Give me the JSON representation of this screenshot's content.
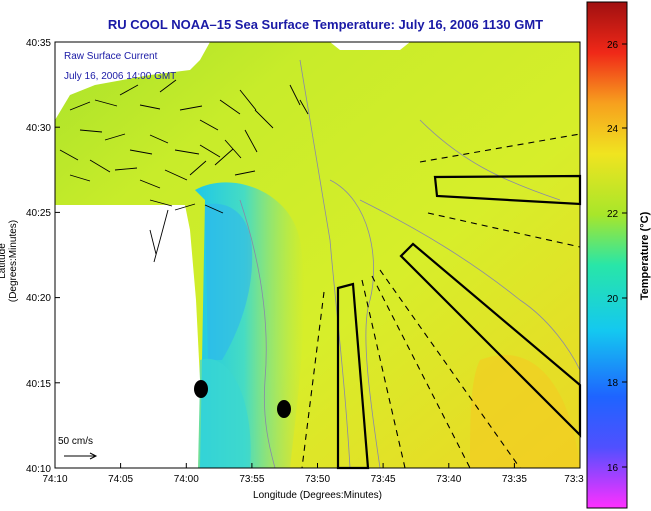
{
  "title": "RU COOL  NOAA–15  Sea Surface Temperature:  July 16, 2006 1130 GMT",
  "legend_line1": "Raw Surface Current",
  "legend_line2": "July 16, 2006 14:00 GMT",
  "scale_label": "50 cm/s",
  "colorbar_label": "Temperature (°C)",
  "chart_data": {
    "type": "heatmap",
    "title": "RU COOL  NOAA–15  Sea Surface Temperature:  July 16, 2006 1130 GMT",
    "xlabel": "Longitude (Degrees:Minutes)",
    "ylabel": "Latitude (Degrees:Minutes)",
    "x_ticks": [
      "74:10",
      "74:05",
      "74:00",
      "73:55",
      "73:50",
      "73:45",
      "73:40",
      "73:35",
      "73:3"
    ],
    "y_ticks": [
      "40:35",
      "40:30",
      "40:25",
      "40:20",
      "40:15",
      "40:10"
    ],
    "colorbar": {
      "label": "Temperature (°C)",
      "ticks": [
        "26",
        "24",
        "22",
        "20",
        "18",
        "16"
      ],
      "range": [
        15,
        27
      ]
    }
  }
}
